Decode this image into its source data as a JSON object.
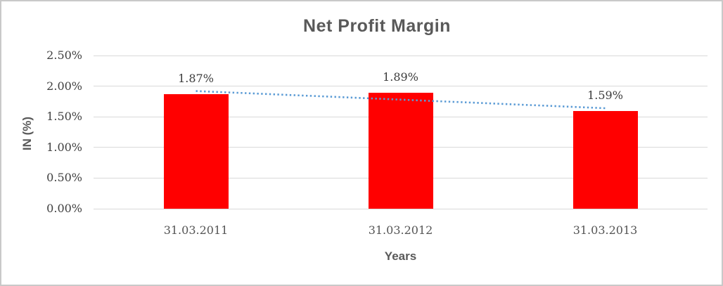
{
  "chart_data": {
    "type": "bar",
    "title": "Net Profit Margin",
    "xlabel": "Years",
    "ylabel": "IN (%)",
    "categories": [
      "31.03.2011",
      "31.03.2012",
      "31.03.2013"
    ],
    "series": [
      {
        "name": "Net Profit Margin",
        "values": [
          1.87,
          1.89,
          1.59
        ],
        "data_labels": [
          "1.87%",
          "1.89%",
          "1.59%"
        ],
        "color": "#ff0000"
      }
    ],
    "y_ticks": [
      {
        "value": 2.5,
        "label": "2.50%"
      },
      {
        "value": 2.0,
        "label": "2.00%"
      },
      {
        "value": 1.5,
        "label": "1.50%"
      },
      {
        "value": 1.0,
        "label": "1.00%"
      },
      {
        "value": 0.5,
        "label": "0.50%"
      },
      {
        "value": 0.0,
        "label": "0.00%"
      }
    ],
    "ylim": [
      0,
      2.5
    ],
    "grid": true,
    "legend": false,
    "trendline": {
      "type": "linear",
      "style": "dotted",
      "color": "#5b9bd5",
      "start_value": 1.92,
      "end_value": 1.64
    },
    "colors": {
      "bar": "#ff0000",
      "gridline": "#d9d9d9",
      "title_text": "#595959",
      "tick_text": "#404040",
      "trendline": "#5b9bd5"
    }
  }
}
